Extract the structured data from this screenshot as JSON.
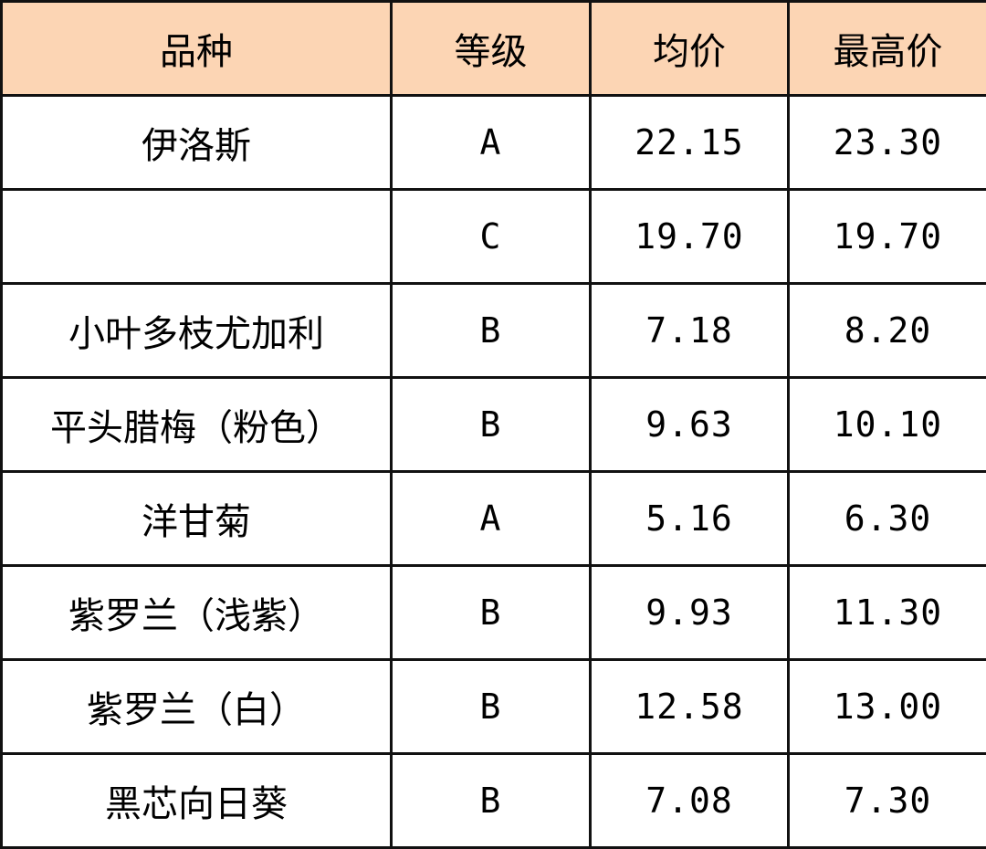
{
  "table": {
    "header_color": "#fcd5b4",
    "headers": [
      "品种",
      "等级",
      "均价",
      "最高价"
    ],
    "rows": [
      {
        "variety": "伊洛斯",
        "grade": "A",
        "avg": "22.15",
        "max": "23.30"
      },
      {
        "variety": "",
        "grade": "C",
        "avg": "19.70",
        "max": "19.70"
      },
      {
        "variety": "小叶多枝尤加利",
        "grade": "B",
        "avg": "7.18",
        "max": "8.20"
      },
      {
        "variety": "平头腊梅（粉色）",
        "grade": "B",
        "avg": "9.63",
        "max": "10.10"
      },
      {
        "variety": "洋甘菊",
        "grade": "A",
        "avg": "5.16",
        "max": "6.30"
      },
      {
        "variety": "紫罗兰（浅紫）",
        "grade": "B",
        "avg": "9.93",
        "max": "11.30"
      },
      {
        "variety": "紫罗兰（白）",
        "grade": "B",
        "avg": "12.58",
        "max": "13.00"
      },
      {
        "variety": "黑芯向日葵",
        "grade": "B",
        "avg": "7.08",
        "max": "7.30"
      }
    ]
  }
}
